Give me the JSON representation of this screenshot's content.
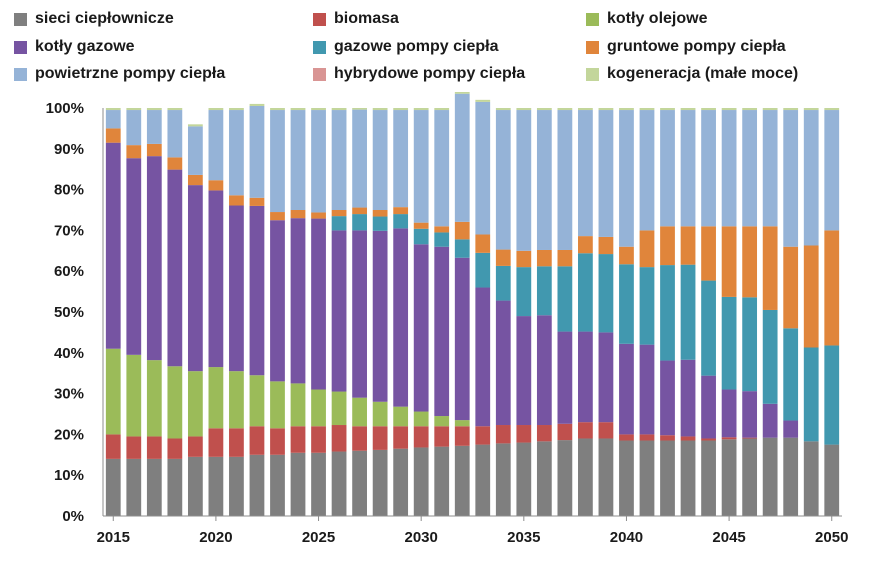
{
  "chart_data": {
    "type": "bar",
    "stacked": true,
    "title": "",
    "xlabel": "",
    "ylabel": "",
    "ylim": [
      0,
      100
    ],
    "y_ticks": [
      "0%",
      "10%",
      "20%",
      "30%",
      "40%",
      "50%",
      "60%",
      "70%",
      "80%",
      "90%",
      "100%"
    ],
    "x_tick_labels": [
      "2015",
      "2020",
      "2025",
      "2030",
      "2035",
      "2040",
      "2045",
      "2050"
    ],
    "grid": false,
    "legend_position": "top",
    "categories": [
      "2015",
      "2016",
      "2017",
      "2018",
      "2019",
      "2020",
      "2021",
      "2022",
      "2023",
      "2024",
      "2025",
      "2026",
      "2027",
      "2028",
      "2029",
      "2030",
      "2031",
      "2032",
      "2033",
      "2034",
      "2035",
      "2036",
      "2037",
      "2038",
      "2039",
      "2040",
      "2041",
      "2042",
      "2043",
      "2044",
      "2045",
      "2046",
      "2047",
      "2048",
      "2049",
      "2050"
    ],
    "series": [
      {
        "name": "sieci ciepłownicze",
        "color": "#7f7f7f",
        "values": [
          14,
          14,
          14,
          14,
          14.5,
          14.5,
          14.5,
          15,
          15,
          15.5,
          15.5,
          15.8,
          16,
          16.2,
          16.5,
          16.8,
          17,
          17.2,
          17.5,
          17.8,
          18,
          18.3,
          18.6,
          19,
          19,
          18.5,
          18.5,
          18.5,
          18.5,
          18.5,
          18.8,
          19,
          19.2,
          19.2,
          18.3,
          17.5
        ]
      },
      {
        "name": "biomasa",
        "color": "#c0504d",
        "values": [
          6,
          5.5,
          5.5,
          5,
          5,
          7,
          7,
          7,
          6.5,
          6.5,
          6.5,
          6.5,
          6,
          5.8,
          5.5,
          5.2,
          5,
          4.8,
          4.5,
          4.5,
          4.3,
          4,
          4,
          4,
          4,
          1.5,
          1.5,
          1.3,
          1,
          0.5,
          0.5,
          0.2,
          0,
          0,
          0,
          0
        ]
      },
      {
        "name": "kotły olejowe",
        "color": "#9bbb59",
        "values": [
          21,
          20,
          18.7,
          17.7,
          16,
          15,
          14,
          12.5,
          11.5,
          10.5,
          9,
          8.2,
          7,
          6,
          4.8,
          3.6,
          2.5,
          1.5,
          0,
          0,
          0,
          0,
          0,
          0,
          0,
          0,
          0,
          0,
          0,
          0,
          0,
          0,
          0,
          0,
          0,
          0
        ]
      },
      {
        "name": "kotły gazowe",
        "color": "#7654a2",
        "values": [
          50.5,
          48.2,
          50,
          48.2,
          45.6,
          43.3,
          40.6,
          41.5,
          39.5,
          40.5,
          41.9,
          39.5,
          41,
          41.9,
          43.7,
          41,
          41.5,
          39.8,
          34,
          30.5,
          26.7,
          26.9,
          22.6,
          22.2,
          22,
          22.2,
          22,
          18.3,
          18.8,
          15.4,
          11.7,
          11.4,
          8.3,
          4.2,
          0,
          0
        ]
      },
      {
        "name": "gazowe pompy ciepła",
        "color": "#4198af",
        "values": [
          0,
          0,
          0,
          0,
          0,
          0,
          0,
          0,
          0,
          0,
          0,
          3.5,
          4,
          3.5,
          3.5,
          3.8,
          3.5,
          4.5,
          8.5,
          8.5,
          12,
          12,
          16,
          19.2,
          19.2,
          19.5,
          19,
          23.4,
          23.3,
          23.3,
          22.7,
          23,
          23,
          22.6,
          23,
          24.3
        ]
      },
      {
        "name": "gruntowe pompy ciepła",
        "color": "#e0853b",
        "values": [
          3.5,
          3.2,
          3,
          3,
          2.5,
          2.5,
          2.5,
          2,
          2,
          2,
          1.5,
          1.5,
          1.6,
          1.6,
          1.7,
          1.5,
          1.5,
          4.3,
          4.5,
          4,
          4,
          4,
          4,
          4.2,
          4.2,
          4.3,
          9,
          9.5,
          9.4,
          13.3,
          17.3,
          17.4,
          20.5,
          20,
          25,
          28.2
        ]
      },
      {
        "name": "powietrzne pompy ciepła",
        "color": "#95b3d7",
        "values": [
          4.5,
          8.6,
          8.3,
          11.6,
          11.9,
          17.2,
          20.9,
          22.5,
          25,
          24.5,
          25.1,
          24.5,
          24,
          24.5,
          23.8,
          27.6,
          28.5,
          31.4,
          32.5,
          34.2,
          34.5,
          34.3,
          34.3,
          30.9,
          31.1,
          33.5,
          29.5,
          28.5,
          28.5,
          28.5,
          28.5,
          28.5,
          28.5,
          33.5,
          33.2,
          29.5
        ]
      },
      {
        "name": "hybrydowe pompy ciepła",
        "color": "#d99594",
        "values": [
          0,
          0,
          0,
          0,
          0,
          0,
          0,
          0,
          0,
          0,
          0,
          0,
          0,
          0,
          0,
          0,
          0,
          0,
          0,
          0,
          0,
          0,
          0,
          0,
          0,
          0,
          0,
          0,
          0,
          0,
          0,
          0,
          0,
          0,
          0,
          0
        ]
      },
      {
        "name": "kogeneracja (małe moce)",
        "color": "#c3d69b",
        "values": [
          0.5,
          0.5,
          0.5,
          0.5,
          0.5,
          0.5,
          0.5,
          0.5,
          0.5,
          0.5,
          0.5,
          0.5,
          0.4,
          0.5,
          0.5,
          0.5,
          0.5,
          0.5,
          0.5,
          0.5,
          0.5,
          0.5,
          0.5,
          0.5,
          0.5,
          0.5,
          0.5,
          0.5,
          0.5,
          0.5,
          0.5,
          0.5,
          0.5,
          0.5,
          0.5,
          0.5
        ]
      }
    ]
  }
}
